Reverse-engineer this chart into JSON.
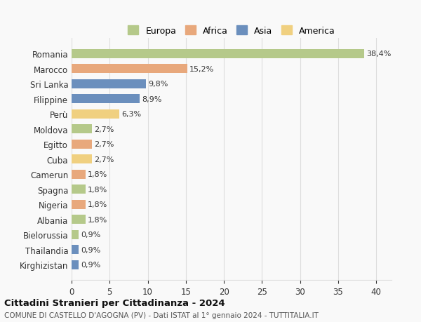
{
  "categories": [
    "Kirghizistan",
    "Thailandia",
    "Bielorussia",
    "Albania",
    "Nigeria",
    "Spagna",
    "Camerun",
    "Cuba",
    "Egitto",
    "Moldova",
    "Perù",
    "Filippine",
    "Sri Lanka",
    "Marocco",
    "Romania"
  ],
  "values": [
    0.9,
    0.9,
    0.9,
    1.8,
    1.8,
    1.8,
    1.8,
    2.7,
    2.7,
    2.7,
    6.3,
    8.9,
    9.8,
    15.2,
    38.4
  ],
  "labels": [
    "0,9%",
    "0,9%",
    "0,9%",
    "1,8%",
    "1,8%",
    "1,8%",
    "1,8%",
    "2,7%",
    "2,7%",
    "2,7%",
    "6,3%",
    "8,9%",
    "9,8%",
    "15,2%",
    "38,4%"
  ],
  "colors": [
    "#6b8fbd",
    "#6b8fbd",
    "#b5c98a",
    "#b5c98a",
    "#e8a87c",
    "#b5c98a",
    "#e8a87c",
    "#f0d080",
    "#e8a87c",
    "#b5c98a",
    "#f0d080",
    "#6b8fbd",
    "#6b8fbd",
    "#e8a87c",
    "#b5c98a"
  ],
  "continent_colors": {
    "Europa": "#b5c98a",
    "Africa": "#e8a87c",
    "Asia": "#6b8fbd",
    "America": "#f0d080"
  },
  "title": "Cittadini Stranieri per Cittadinanza - 2024",
  "subtitle": "COMUNE DI CASTELLO D'AGOGNA (PV) - Dati ISTAT al 1° gennaio 2024 - TUTTITALIA.IT",
  "xlabel": "",
  "xlim": [
    0,
    42
  ],
  "xticks": [
    0,
    5,
    10,
    15,
    20,
    25,
    30,
    35,
    40
  ],
  "background_color": "#f9f9f9",
  "grid_color": "#dddddd"
}
